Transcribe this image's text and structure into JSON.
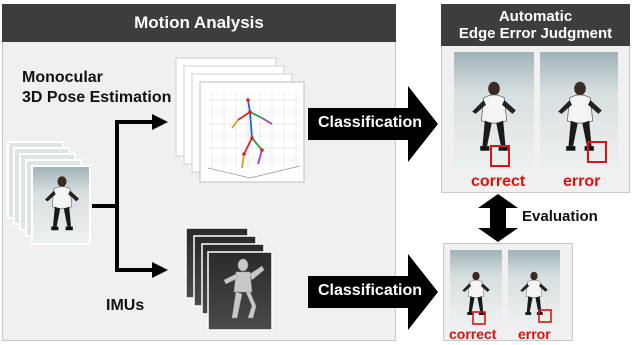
{
  "motion_panel": {
    "title": "Motion Analysis"
  },
  "pose_label": {
    "line1": "Monocular",
    "line2": "3D Pose Estimation"
  },
  "imu_label": "IMUs",
  "judgment_panel": {
    "title_line1": "Automatic",
    "title_line2": "Edge Error Judgment"
  },
  "classification_labels": [
    "Classification",
    "Classification"
  ],
  "result_labels_top": [
    "correct",
    "error"
  ],
  "result_labels_bottom": [
    "correct",
    "error"
  ],
  "evaluation_label": "Evaluation",
  "colors": {
    "header": "#3d3d3d",
    "panel": "#f0f0f0",
    "highlight": "#e01010",
    "arrow": "#000000",
    "skeleton": [
      "#e02020",
      "#2060e0",
      "#20a040",
      "#e0a020",
      "#a040c0"
    ]
  },
  "icons": [
    "video-frames-stack",
    "skeleton-plot-stack",
    "imu-avatar-stack",
    "skater-photo"
  ]
}
